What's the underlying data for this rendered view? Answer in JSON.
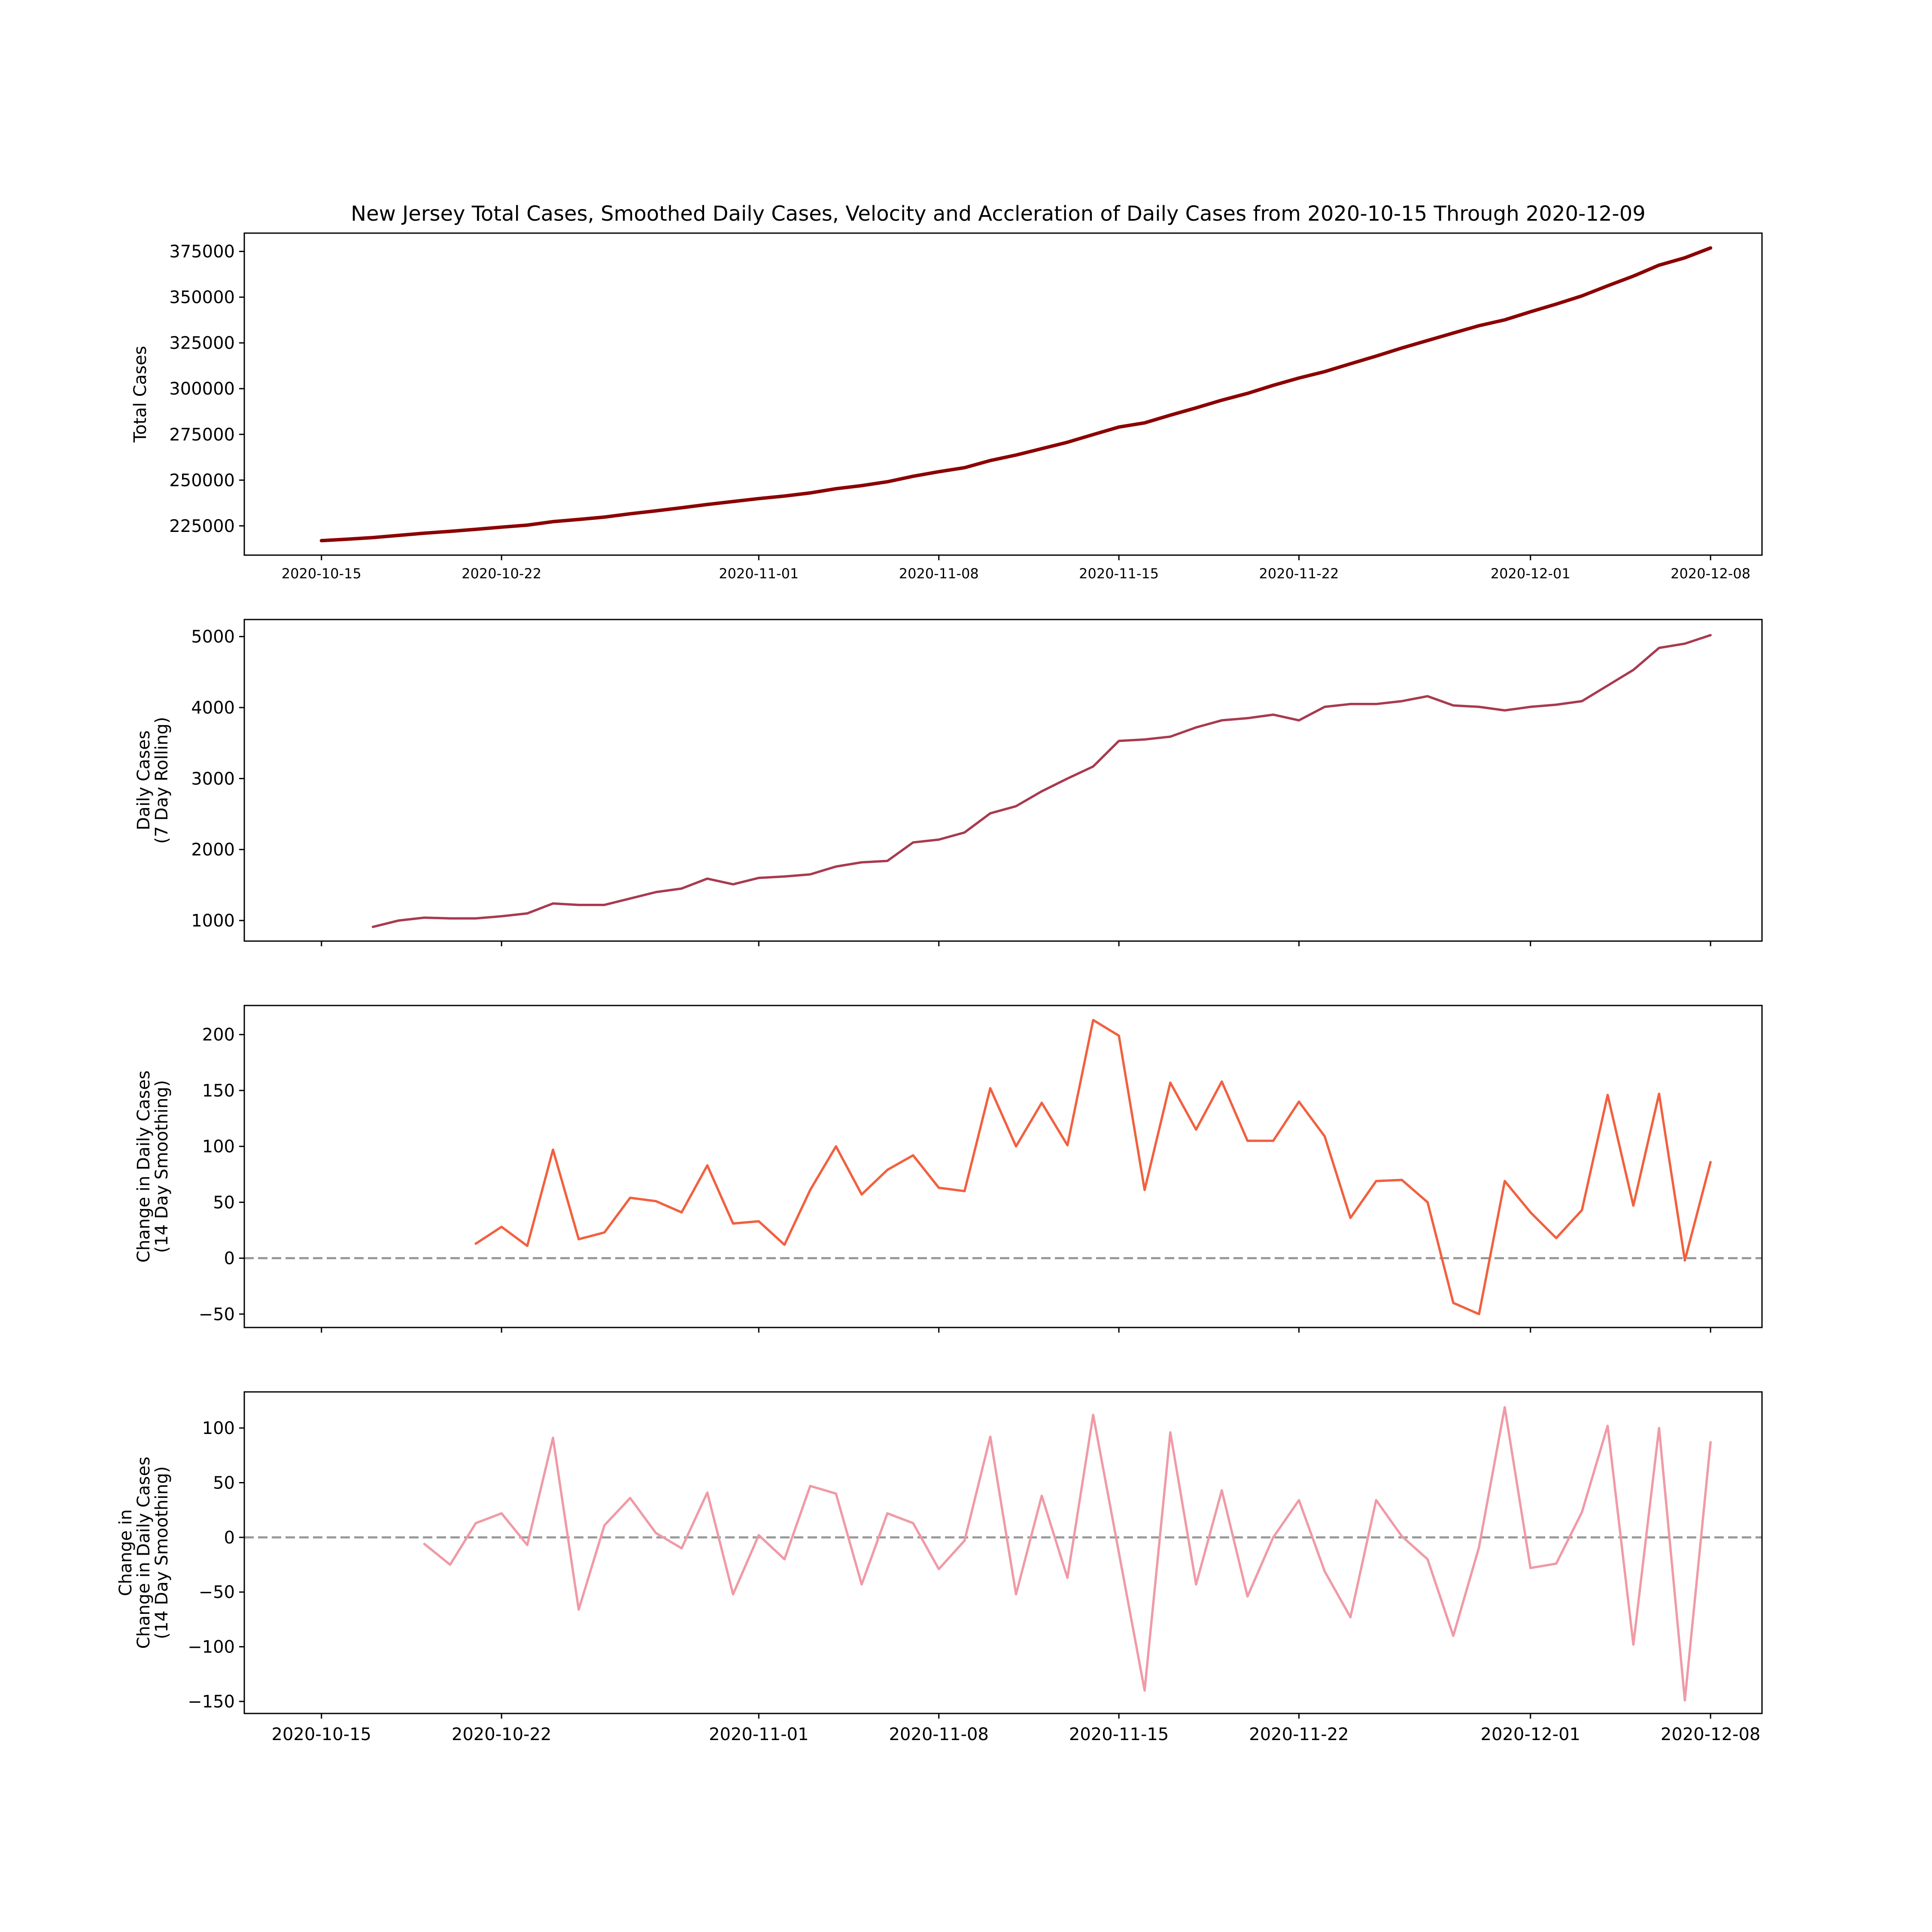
{
  "figure_title": "New Jersey Total Cases, Smoothed Daily Cases, Velocity and Accleration of Daily Cases from 2020-10-15 Through 2020-12-09",
  "colors": {
    "total": "#8b0000",
    "daily": "#a83a4f",
    "velocity": "#f2603f",
    "acceleration": "#f09aa6",
    "zero_line": "#999999"
  },
  "chart_data": [
    {
      "type": "line",
      "ylabel": [
        "Total Cases"
      ],
      "x": [
        "2020-10-15",
        "2020-10-16",
        "2020-10-17",
        "2020-10-18",
        "2020-10-19",
        "2020-10-20",
        "2020-10-21",
        "2020-10-22",
        "2020-10-23",
        "2020-10-24",
        "2020-10-25",
        "2020-10-26",
        "2020-10-27",
        "2020-10-28",
        "2020-10-29",
        "2020-10-30",
        "2020-10-31",
        "2020-11-01",
        "2020-11-02",
        "2020-11-03",
        "2020-11-04",
        "2020-11-05",
        "2020-11-06",
        "2020-11-07",
        "2020-11-08",
        "2020-11-09",
        "2020-11-10",
        "2020-11-11",
        "2020-11-12",
        "2020-11-13",
        "2020-11-14",
        "2020-11-15",
        "2020-11-16",
        "2020-11-17",
        "2020-11-18",
        "2020-11-19",
        "2020-11-20",
        "2020-11-21",
        "2020-11-22",
        "2020-11-23",
        "2020-11-24",
        "2020-11-25",
        "2020-11-26",
        "2020-11-27",
        "2020-11-28",
        "2020-11-29",
        "2020-11-30",
        "2020-12-01",
        "2020-12-02",
        "2020-12-03",
        "2020-12-04",
        "2020-12-05",
        "2020-12-06",
        "2020-12-07",
        "2020-12-08"
      ],
      "values": [
        216900,
        217700,
        218600,
        219800,
        221000,
        222000,
        223100,
        224300,
        225400,
        227300,
        228500,
        229800,
        231600,
        233200,
        234900,
        236700,
        238300,
        239900,
        241300,
        243000,
        245300,
        247000,
        249100,
        252100,
        254600,
        256800,
        260700,
        263700,
        267200,
        270700,
        274900,
        279000,
        281300,
        285500,
        289500,
        293700,
        297400,
        301800,
        305800,
        309300,
        313600,
        317800,
        322200,
        326300,
        330400,
        334400,
        337600,
        342000,
        346200,
        350700,
        356200,
        361500,
        367500,
        371500,
        376900
      ],
      "ylim": [
        209000,
        385000
      ],
      "yticks": [
        225000,
        250000,
        275000,
        300000,
        325000,
        350000,
        375000
      ],
      "xticks": [
        "2020-10-15",
        "2020-10-22",
        "2020-11-01",
        "2020-11-08",
        "2020-11-15",
        "2020-11-22",
        "2020-12-01",
        "2020-12-08"
      ],
      "show_xtick_labels": true,
      "zero_line": false
    },
    {
      "type": "line",
      "ylabel": [
        "Daily Cases",
        "(7 Day Rolling)"
      ],
      "x": [
        "2020-10-17",
        "2020-10-18",
        "2020-10-19",
        "2020-10-20",
        "2020-10-21",
        "2020-10-22",
        "2020-10-23",
        "2020-10-24",
        "2020-10-25",
        "2020-10-26",
        "2020-10-27",
        "2020-10-28",
        "2020-10-29",
        "2020-10-30",
        "2020-10-31",
        "2020-11-01",
        "2020-11-02",
        "2020-11-03",
        "2020-11-04",
        "2020-11-05",
        "2020-11-06",
        "2020-11-07",
        "2020-11-08",
        "2020-11-09",
        "2020-11-10",
        "2020-11-11",
        "2020-11-12",
        "2020-11-13",
        "2020-11-14",
        "2020-11-15",
        "2020-11-16",
        "2020-11-17",
        "2020-11-18",
        "2020-11-19",
        "2020-11-20",
        "2020-11-21",
        "2020-11-22",
        "2020-11-23",
        "2020-11-24",
        "2020-11-25",
        "2020-11-26",
        "2020-11-27",
        "2020-11-28",
        "2020-11-29",
        "2020-11-30",
        "2020-12-01",
        "2020-12-02",
        "2020-12-03",
        "2020-12-04",
        "2020-12-05",
        "2020-12-06",
        "2020-12-07",
        "2020-12-08"
      ],
      "values": [
        910,
        1000,
        1040,
        1030,
        1030,
        1060,
        1100,
        1240,
        1220,
        1220,
        1310,
        1400,
        1450,
        1590,
        1510,
        1600,
        1620,
        1650,
        1760,
        1820,
        1840,
        2100,
        2140,
        2240,
        2510,
        2610,
        2820,
        3000,
        3170,
        3530,
        3550,
        3590,
        3720,
        3820,
        3850,
        3900,
        3820,
        4010,
        4050,
        4050,
        4090,
        4160,
        4030,
        4010,
        3960,
        4010,
        4040,
        4090,
        4310,
        4530,
        4840,
        4900,
        5020
      ],
      "ylim": [
        710,
        5240
      ],
      "yticks": [
        1000,
        2000,
        3000,
        4000,
        5000
      ],
      "xticks": [
        "2020-10-15",
        "2020-10-22",
        "2020-11-01",
        "2020-11-08",
        "2020-11-15",
        "2020-11-22",
        "2020-12-01",
        "2020-12-08"
      ],
      "show_xtick_labels": false,
      "zero_line": false
    },
    {
      "type": "line",
      "ylabel": [
        "Change in Daily Cases",
        "(14 Day Smoothing)"
      ],
      "x": [
        "2020-10-21",
        "2020-10-22",
        "2020-10-23",
        "2020-10-24",
        "2020-10-25",
        "2020-10-26",
        "2020-10-27",
        "2020-10-28",
        "2020-10-29",
        "2020-10-30",
        "2020-10-31",
        "2020-11-01",
        "2020-11-02",
        "2020-11-03",
        "2020-11-04",
        "2020-11-05",
        "2020-11-06",
        "2020-11-07",
        "2020-11-08",
        "2020-11-09",
        "2020-11-10",
        "2020-11-11",
        "2020-11-12",
        "2020-11-13",
        "2020-11-14",
        "2020-11-15",
        "2020-11-16",
        "2020-11-17",
        "2020-11-18",
        "2020-11-19",
        "2020-11-20",
        "2020-11-21",
        "2020-11-22",
        "2020-11-23",
        "2020-11-24",
        "2020-11-25",
        "2020-11-26",
        "2020-11-27",
        "2020-11-28",
        "2020-11-29",
        "2020-11-30",
        "2020-12-01",
        "2020-12-02",
        "2020-12-03",
        "2020-12-04",
        "2020-12-05",
        "2020-12-06",
        "2020-12-07",
        "2020-12-08"
      ],
      "values": [
        13,
        28,
        11,
        97,
        17,
        23,
        54,
        51,
        41,
        83,
        31,
        33,
        12,
        61,
        100,
        57,
        79,
        92,
        63,
        60,
        152,
        100,
        139,
        101,
        213,
        199,
        61,
        157,
        115,
        158,
        105,
        105,
        140,
        109,
        36,
        69,
        70,
        50,
        -40,
        -50,
        69,
        41,
        18,
        43,
        146,
        47,
        147,
        -2,
        86
      ],
      "ylim": [
        -62,
        226
      ],
      "yticks": [
        -50,
        0,
        50,
        100,
        150,
        200
      ],
      "xticks": [
        "2020-10-15",
        "2020-10-22",
        "2020-11-01",
        "2020-11-08",
        "2020-11-15",
        "2020-11-22",
        "2020-12-01",
        "2020-12-08"
      ],
      "show_xtick_labels": false,
      "zero_line": true
    },
    {
      "type": "line",
      "ylabel": [
        "Change in",
        "Change in Daily Cases",
        "(14 Day Smoothing)"
      ],
      "x": [
        "2020-10-19",
        "2020-10-20",
        "2020-10-21",
        "2020-10-22",
        "2020-10-23",
        "2020-10-24",
        "2020-10-25",
        "2020-10-26",
        "2020-10-27",
        "2020-10-28",
        "2020-10-29",
        "2020-10-30",
        "2020-10-31",
        "2020-11-01",
        "2020-11-02",
        "2020-11-03",
        "2020-11-04",
        "2020-11-05",
        "2020-11-06",
        "2020-11-07",
        "2020-11-08",
        "2020-11-09",
        "2020-11-10",
        "2020-11-11",
        "2020-11-12",
        "2020-11-13",
        "2020-11-14",
        "2020-11-15",
        "2020-11-16",
        "2020-11-17",
        "2020-11-18",
        "2020-11-19",
        "2020-11-20",
        "2020-11-21",
        "2020-11-22",
        "2020-11-23",
        "2020-11-24",
        "2020-11-25",
        "2020-11-26",
        "2020-11-27",
        "2020-11-28",
        "2020-11-29",
        "2020-11-30",
        "2020-12-01",
        "2020-12-02",
        "2020-12-03",
        "2020-12-04",
        "2020-12-05",
        "2020-12-06",
        "2020-12-07",
        "2020-12-08"
      ],
      "values": [
        -6,
        -25,
        13,
        22,
        -7,
        91,
        -66,
        11,
        36,
        4,
        -10,
        41,
        -52,
        2,
        -20,
        47,
        40,
        -43,
        22,
        13,
        -29,
        -3,
        92,
        -52,
        38,
        -37,
        112,
        -14,
        -140,
        96,
        -43,
        43,
        -54,
        0,
        34,
        -31,
        -73,
        34,
        1,
        -20,
        -90,
        -9,
        119,
        -28,
        -24,
        23,
        102,
        -98,
        100,
        -149,
        87
      ],
      "ylim": [
        -161,
        133
      ],
      "yticks": [
        -150,
        -100,
        -50,
        0,
        50,
        100
      ],
      "xticks": [
        "2020-10-15",
        "2020-10-22",
        "2020-11-01",
        "2020-11-08",
        "2020-11-15",
        "2020-11-22",
        "2020-12-01",
        "2020-12-08"
      ],
      "show_xtick_labels": true,
      "zero_line": true
    }
  ]
}
